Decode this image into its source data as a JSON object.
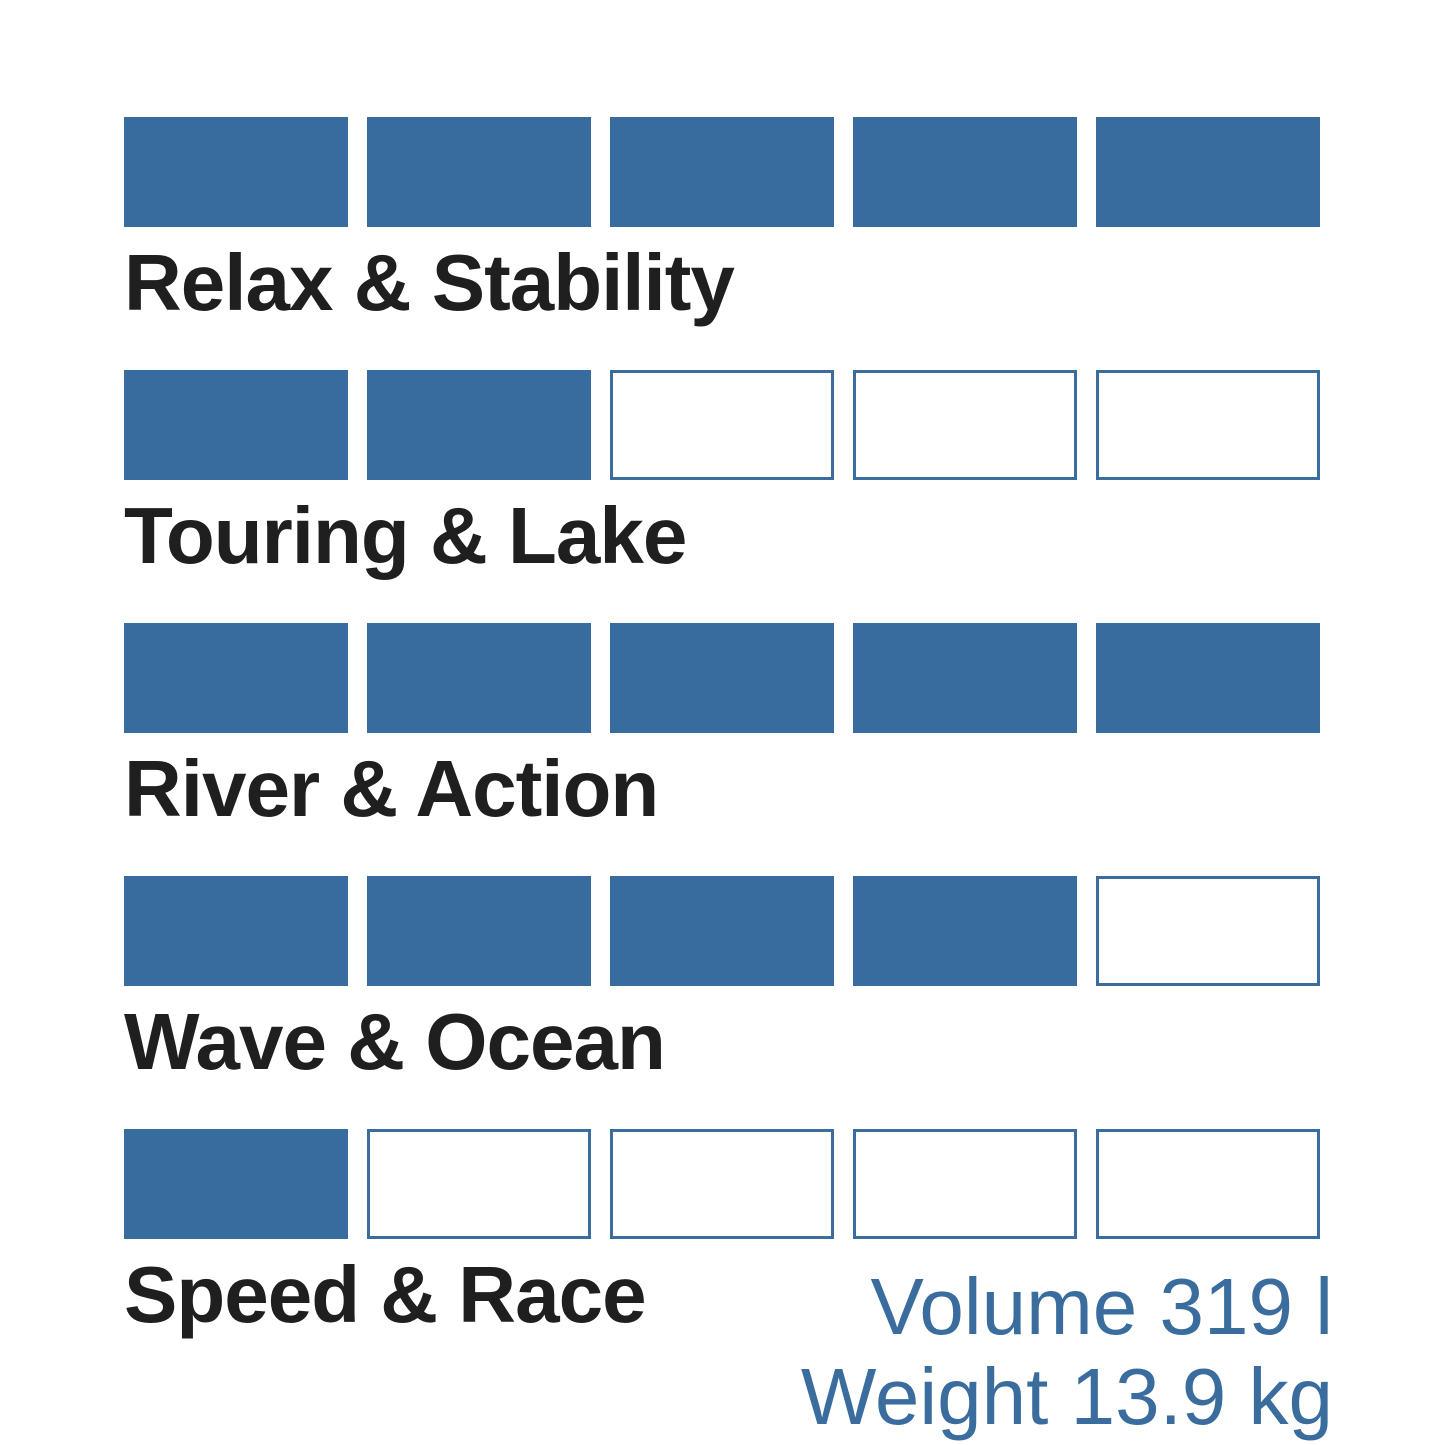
{
  "chart_data": {
    "type": "bar",
    "title": "",
    "categories": [
      "Relax & Stability",
      "Touring & Lake",
      "River & Action",
      "Wave & Ocean",
      "Speed & Race"
    ],
    "values": [
      5,
      2,
      5,
      4,
      1
    ],
    "value_max": 5,
    "style": "filled-square-pictograph",
    "annotations": [
      "Volume 319 l",
      "Weight 13.9 kg"
    ],
    "legend_position": "none",
    "grid": false
  },
  "ratings": {
    "max": 5,
    "items": [
      {
        "label": "Relax & Stability",
        "value": 5
      },
      {
        "label": "Touring & Lake",
        "value": 2
      },
      {
        "label": "River & Action",
        "value": 5
      },
      {
        "label": "Wave & Ocean",
        "value": 4
      },
      {
        "label": "Speed & Race",
        "value": 1
      }
    ]
  },
  "specs": {
    "volume": "Volume 319 l",
    "weight": "Weight 13.9 kg"
  },
  "colors": {
    "box_fill": "#386B9E",
    "box_border": "#3A6D9E",
    "label_text": "#1F1F1F",
    "spec_text": "#3A6D9E",
    "background": "#FFFFFF"
  }
}
